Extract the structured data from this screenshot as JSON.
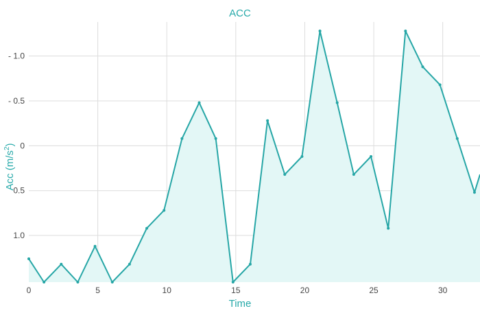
{
  "chart_data": {
    "type": "area",
    "title": "ACC",
    "xlabel": "Time",
    "ylabel_main": "Acc (m/s",
    "ylabel_sup": "2",
    "ylabel_close": ")",
    "xlim": [
      0,
      32.7
    ],
    "ylim": [
      -1.38,
      1.52
    ],
    "y_reversed": true,
    "grid": true,
    "legend": "none",
    "color": "#26a6a6",
    "fill_color": "#e3f7f6",
    "x_ticks": [
      {
        "value": 0,
        "label": "0"
      },
      {
        "value": 5,
        "label": "5"
      },
      {
        "value": 10,
        "label": "10"
      },
      {
        "value": 15,
        "label": "15"
      },
      {
        "value": 20,
        "label": "20"
      },
      {
        "value": 25,
        "label": "25"
      },
      {
        "value": 30,
        "label": "30"
      }
    ],
    "y_ticks": [
      {
        "value": -1.0,
        "label": "- 1.0"
      },
      {
        "value": -0.5,
        "label": "- 0.5"
      },
      {
        "value": 0,
        "label": "0"
      },
      {
        "value": 0.5,
        "label": "0.5"
      },
      {
        "value": 1.0,
        "label": "1.0"
      }
    ],
    "x": [
      0,
      1.1,
      2.35,
      3.55,
      4.8,
      6.05,
      7.3,
      8.55,
      9.8,
      11.1,
      12.35,
      13.55,
      14.8,
      16.05,
      17.3,
      18.55,
      19.8,
      21.1,
      22.35,
      23.55,
      24.8,
      26.05,
      27.3,
      28.55,
      29.8,
      31.05,
      32.3,
      32.7
    ],
    "y": [
      1.26,
      1.52,
      1.32,
      1.52,
      1.12,
      1.52,
      1.32,
      0.92,
      0.72,
      -0.08,
      -0.48,
      -0.08,
      1.52,
      1.32,
      -0.28,
      0.32,
      0.12,
      -1.28,
      -0.48,
      0.32,
      0.12,
      0.92,
      -1.28,
      -0.88,
      -0.68,
      -0.08,
      0.52,
      0.32
    ]
  }
}
